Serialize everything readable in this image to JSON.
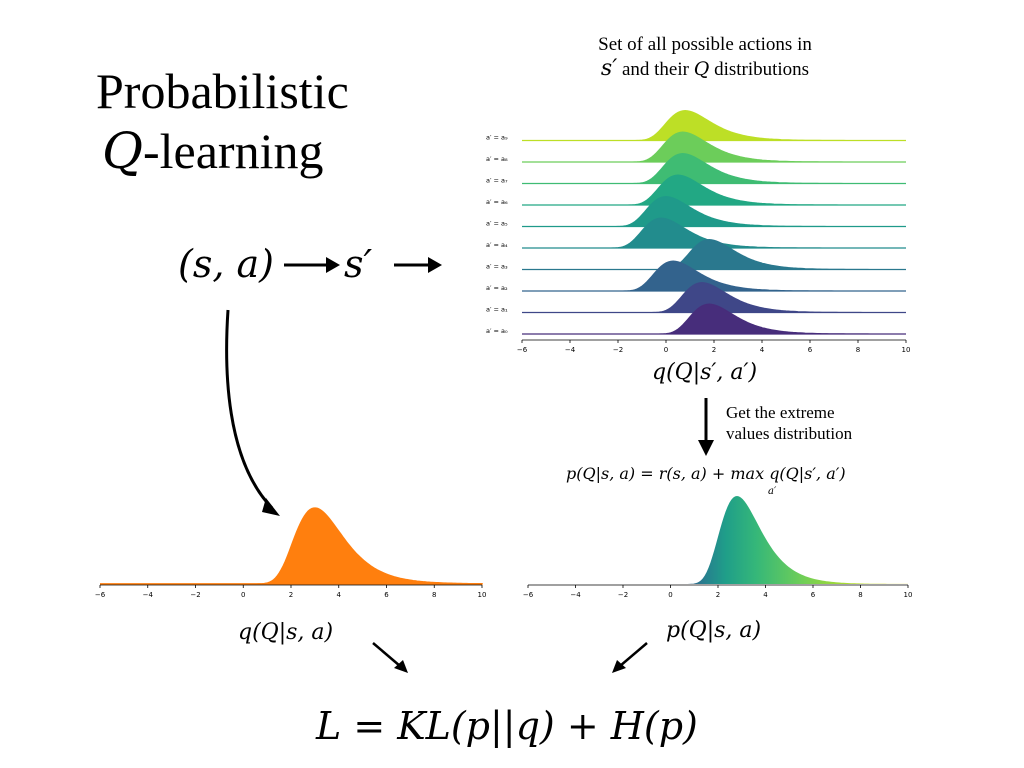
{
  "slide": {
    "title_line1": "Probabilistic",
    "title_q": "Q",
    "title_line2_rest": "-learning",
    "state_action": "(s, a)",
    "next_state": "s′",
    "set_note_line1": "Set of all possible actions in",
    "set_note_s": "s′",
    "set_note_mid": " and their ",
    "set_note_q": "Q",
    "set_note_end": " distributions",
    "ridge_caption": "q(Q|s′, a′)",
    "extreme_note_line1": "Get the extreme",
    "extreme_note_line2": "values distribution",
    "target_formula": "p(Q|s, a) = r(s, a) + max q(Q|s′, a′)",
    "target_formula_sub": "a′",
    "left_caption": "q(Q|s, a)",
    "right_caption": "p(Q|s, a)",
    "loss_formula": "L = KL(p||q) + H(p)"
  },
  "chart_data": [
    {
      "type": "area",
      "name": "ridgeline",
      "xlim": [
        -6,
        10
      ],
      "x_ticks": [
        "−6",
        "−4",
        "−2",
        "0",
        "2",
        "4",
        "6",
        "8",
        "10"
      ],
      "series": [
        {
          "name": "a′ = a₉",
          "mode": 0.8,
          "color": "#bddf26"
        },
        {
          "name": "a′ = a₈",
          "mode": 0.7,
          "color": "#6ccd5a"
        },
        {
          "name": "a′ = a₇",
          "mode": 0.7,
          "color": "#3fbc73"
        },
        {
          "name": "a′ = a₆",
          "mode": 0.5,
          "color": "#22a884"
        },
        {
          "name": "a′ = a₅",
          "mode": 0.0,
          "color": "#1f9a8a"
        },
        {
          "name": "a′ = a₄",
          "mode": -0.2,
          "color": "#228c8d"
        },
        {
          "name": "a′ = a₃",
          "mode": 1.8,
          "color": "#2a788e"
        },
        {
          "name": "a′ = a₂",
          "mode": 0.3,
          "color": "#33638d"
        },
        {
          "name": "a′ = a₁",
          "mode": 1.5,
          "color": "#3f4788"
        },
        {
          "name": "a′ = a₀",
          "mode": 1.8,
          "color": "#472d7b"
        }
      ]
    },
    {
      "type": "area",
      "name": "q(Q|s, a)",
      "xlim": [
        -6,
        10
      ],
      "x_ticks": [
        "−6",
        "−4",
        "−2",
        "0",
        "2",
        "4",
        "6",
        "8",
        "10"
      ],
      "mode": 3.0,
      "color": "#ff7f0e"
    },
    {
      "type": "area",
      "name": "p(Q|s, a)",
      "xlim": [
        -6,
        10
      ],
      "x_ticks": [
        "−6",
        "−4",
        "−2",
        "0",
        "2",
        "4",
        "6",
        "8",
        "10"
      ],
      "mode": 2.8,
      "color": "#21918c"
    }
  ]
}
